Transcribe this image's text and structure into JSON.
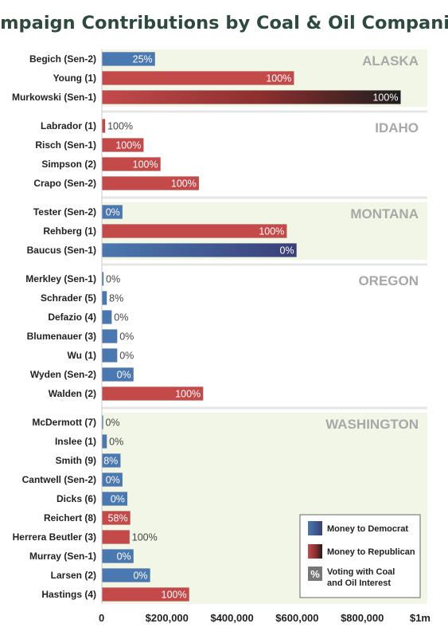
{
  "chart_data": {
    "type": "bar",
    "orientation": "horizontal",
    "title": "Campaign Contributions by Coal & Oil Companies",
    "xlim": [
      0,
      1000000
    ],
    "x_ticks": [
      {
        "value": 0,
        "label": "0"
      },
      {
        "value": 200000,
        "label": "$200,000"
      },
      {
        "value": 400000,
        "label": "$400,000"
      },
      {
        "value": 600000,
        "label": "$600,000"
      },
      {
        "value": 800000,
        "label": "$800,000"
      },
      {
        "value": 1000000,
        "label": "$1m"
      }
    ],
    "colors": {
      "democrat": "#4a78b0",
      "republican": "#c44a4a",
      "band_shade": "#f2f6e6",
      "state_label": "#a8a8a8",
      "title": "#2e4a3e"
    },
    "states": [
      {
        "name": "ALASKA",
        "shaded": true,
        "rows": [
          {
            "label": "Begich (Sen-2)",
            "value": 163000,
            "party": "D",
            "vote": "25%"
          },
          {
            "label": "Young (1)",
            "value": 590000,
            "party": "R",
            "vote": "100%"
          },
          {
            "label": "Murkowski (Sen-1)",
            "value": 918000,
            "party": "R",
            "vote": "100%",
            "gradient": true
          }
        ]
      },
      {
        "name": "IDAHO",
        "shaded": false,
        "rows": [
          {
            "label": "Labrador (1)",
            "value": 10000,
            "party": "R",
            "vote": "100%"
          },
          {
            "label": "Risch (Sen-1)",
            "value": 128000,
            "party": "R",
            "vote": "100%"
          },
          {
            "label": "Simpson (2)",
            "value": 180000,
            "party": "R",
            "vote": "100%"
          },
          {
            "label": "Crapo (Sen-2)",
            "value": 298000,
            "party": "R",
            "vote": "100%"
          }
        ]
      },
      {
        "name": "MONTANA",
        "shaded": true,
        "rows": [
          {
            "label": "Tester (Sen-2)",
            "value": 63000,
            "party": "D",
            "vote": "0%"
          },
          {
            "label": "Rehberg (1)",
            "value": 568000,
            "party": "R",
            "vote": "100%"
          },
          {
            "label": "Baucus (Sen-1)",
            "value": 598000,
            "party": "D",
            "vote": "0%",
            "gradient": true
          }
        ]
      },
      {
        "name": "OREGON",
        "shaded": false,
        "rows": [
          {
            "label": "Merkley (Sen-1)",
            "value": 5000,
            "party": "D",
            "vote": "0%"
          },
          {
            "label": "Schrader (5)",
            "value": 15000,
            "party": "D",
            "vote": "8%"
          },
          {
            "label": "Defazio (4)",
            "value": 30000,
            "party": "D",
            "vote": "0%"
          },
          {
            "label": "Blumenauer (3)",
            "value": 47000,
            "party": "D",
            "vote": "0%"
          },
          {
            "label": "Wu (1)",
            "value": 47000,
            "party": "D",
            "vote": "0%"
          },
          {
            "label": "Wyden (Sen-2)",
            "value": 97000,
            "party": "D",
            "vote": "0%"
          },
          {
            "label": "Walden (2)",
            "value": 311000,
            "party": "R",
            "vote": "100%"
          }
        ]
      },
      {
        "name": "WASHINGTON",
        "shaded": true,
        "rows": [
          {
            "label": "McDermott (7)",
            "value": 1000,
            "party": "D",
            "vote": "0%"
          },
          {
            "label": "Inslee (1)",
            "value": 15000,
            "party": "D",
            "vote": "0%"
          },
          {
            "label": "Smith (9)",
            "value": 57000,
            "party": "D",
            "vote": "8%"
          },
          {
            "label": "Cantwell (Sen-2)",
            "value": 63000,
            "party": "D",
            "vote": "0%"
          },
          {
            "label": "Dicks (6)",
            "value": 78000,
            "party": "D",
            "vote": "0%"
          },
          {
            "label": "Reichert (8)",
            "value": 87000,
            "party": "R",
            "vote": "58%"
          },
          {
            "label": "Herrera Beutler (3)",
            "value": 85000,
            "party": "R",
            "vote": "100%"
          },
          {
            "label": "Murray (Sen-1)",
            "value": 97000,
            "party": "D",
            "vote": "0%"
          },
          {
            "label": "Larsen (2)",
            "value": 148000,
            "party": "D",
            "vote": "0%"
          },
          {
            "label": "Hastings (4)",
            "value": 268000,
            "party": "R",
            "vote": "100%"
          }
        ]
      }
    ],
    "legend": {
      "position": "bottom-right",
      "items": [
        {
          "label": "Money to Democrat",
          "key": "democrat"
        },
        {
          "label": "Money to Republican",
          "key": "republican"
        },
        {
          "label": "Voting with Coal and Oil Interest",
          "key": "vote",
          "symbol": "%"
        }
      ]
    }
  }
}
